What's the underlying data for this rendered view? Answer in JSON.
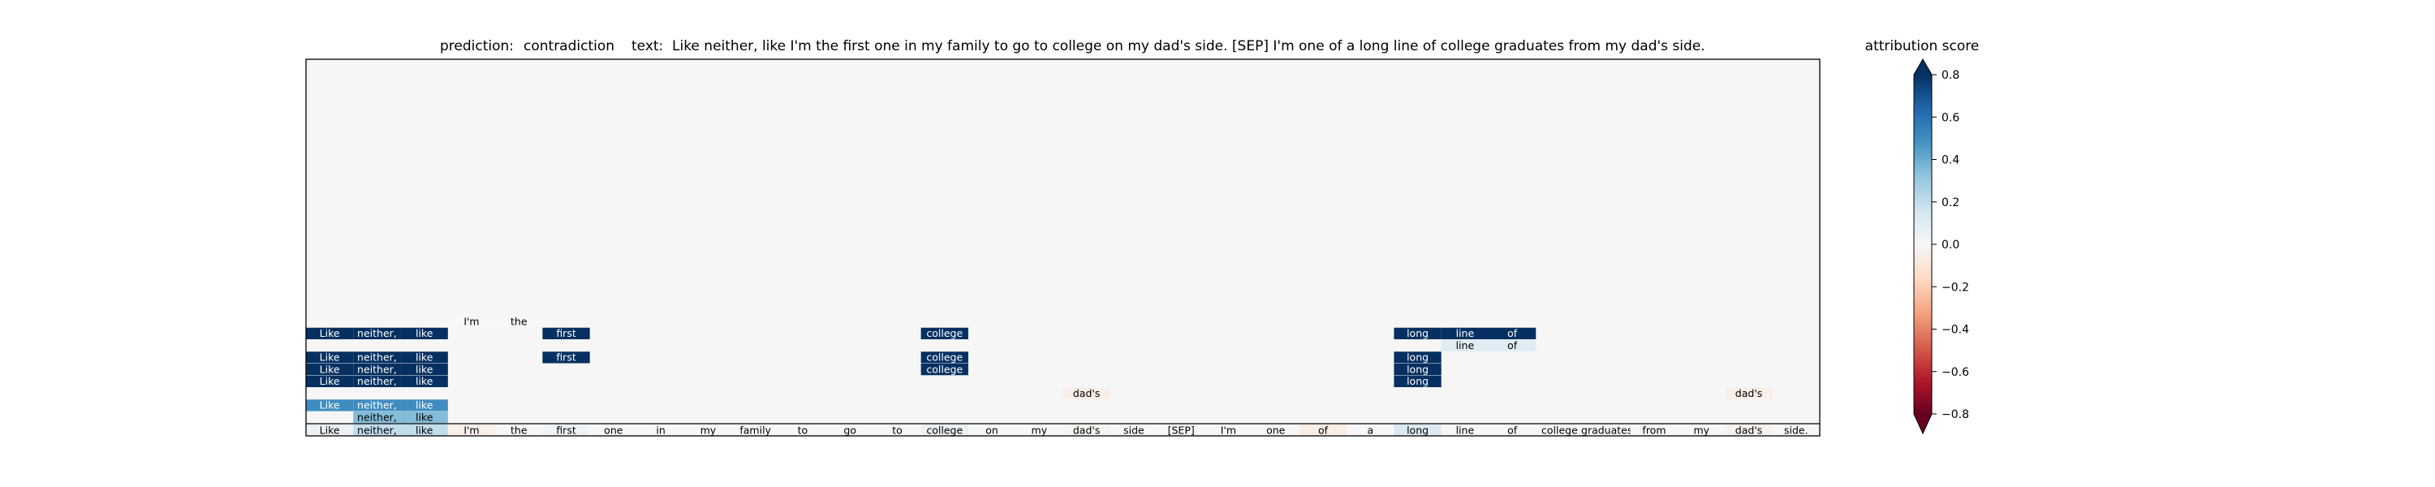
{
  "chart_data": {
    "type": "heatmap",
    "title_prediction_label": "prediction:",
    "title_prediction_value": "contradiction",
    "title_text_label": "text:",
    "title_text_value": "Like neither, like I'm the first one in my family to go to college on my dad's side. [SEP] I'm one of a long line of college graduates from my dad's side.",
    "colorbar": {
      "label": "attribution score",
      "ticks": [
        "0.8",
        "0.6",
        "0.4",
        "0.2",
        "0.0",
        "−0.2",
        "−0.4",
        "−0.6",
        "−0.8"
      ],
      "tick_values": [
        0.8,
        0.6,
        0.4,
        0.2,
        0.0,
        -0.2,
        -0.4,
        -0.6,
        -0.8
      ],
      "range": [
        -0.8,
        0.8
      ],
      "colormap": "RdBu"
    },
    "tokens": [
      "Like",
      "neither,",
      "like",
      "I'm",
      "the",
      "first",
      "one",
      "in",
      "my",
      "family",
      "to",
      "go",
      "to",
      "college",
      "on",
      "my",
      "dad's",
      "side",
      "[SEP]",
      "I'm",
      "one",
      "of",
      "a",
      "long",
      "line",
      "of",
      "college",
      "graduates",
      "from",
      "my",
      "dad's",
      "side."
    ],
    "rows": [
      [
        {
          "i": 3,
          "v": 0.0
        },
        {
          "i": 4,
          "v": 0.0
        }
      ],
      [
        {
          "i": 0,
          "v": 0.8
        },
        {
          "i": 1,
          "v": 0.8
        },
        {
          "i": 2,
          "v": 0.8
        },
        {
          "i": 5,
          "v": 0.8
        },
        {
          "i": 13,
          "v": 0.8
        },
        {
          "i": 23,
          "v": 0.8
        },
        {
          "i": 24,
          "v": 0.8
        },
        {
          "i": 25,
          "v": 0.8
        }
      ],
      [
        {
          "i": 24,
          "v": 0.1
        },
        {
          "i": 25,
          "v": 0.1
        }
      ],
      [
        {
          "i": 0,
          "v": 0.8
        },
        {
          "i": 1,
          "v": 0.8
        },
        {
          "i": 2,
          "v": 0.8
        },
        {
          "i": 5,
          "v": 0.8
        },
        {
          "i": 13,
          "v": 0.8
        },
        {
          "i": 23,
          "v": 0.8
        }
      ],
      [
        {
          "i": 0,
          "v": 0.8
        },
        {
          "i": 1,
          "v": 0.8
        },
        {
          "i": 2,
          "v": 0.8
        },
        {
          "i": 13,
          "v": 0.8
        },
        {
          "i": 23,
          "v": 0.8
        }
      ],
      [
        {
          "i": 0,
          "v": 0.8
        },
        {
          "i": 1,
          "v": 0.8
        },
        {
          "i": 2,
          "v": 0.8
        },
        {
          "i": 23,
          "v": 0.8
        }
      ],
      [
        {
          "i": 16,
          "v": -0.05
        },
        {
          "i": 30,
          "v": -0.05
        }
      ],
      [
        {
          "i": 0,
          "v": 0.5
        },
        {
          "i": 1,
          "v": 0.5
        },
        {
          "i": 2,
          "v": 0.5
        }
      ],
      [
        {
          "i": 1,
          "v": 0.35
        },
        {
          "i": 2,
          "v": 0.35
        }
      ],
      [
        {
          "i": 0,
          "v": 0.05
        },
        {
          "i": 1,
          "v": 0.2
        },
        {
          "i": 2,
          "v": 0.2
        },
        {
          "i": 3,
          "v": -0.04
        },
        {
          "i": 4,
          "v": 0.0
        },
        {
          "i": 5,
          "v": 0.03
        },
        {
          "i": 6,
          "v": 0.0
        },
        {
          "i": 7,
          "v": 0.0
        },
        {
          "i": 8,
          "v": 0.0
        },
        {
          "i": 9,
          "v": 0.0
        },
        {
          "i": 10,
          "v": 0.0
        },
        {
          "i": 11,
          "v": 0.0
        },
        {
          "i": 12,
          "v": 0.0
        },
        {
          "i": 13,
          "v": 0.05
        },
        {
          "i": 14,
          "v": 0.0
        },
        {
          "i": 15,
          "v": 0.0
        },
        {
          "i": 16,
          "v": -0.02
        },
        {
          "i": 17,
          "v": 0.0
        },
        {
          "i": 18,
          "v": 0.0
        },
        {
          "i": 19,
          "v": 0.0
        },
        {
          "i": 20,
          "v": 0.0
        },
        {
          "i": 21,
          "v": -0.06
        },
        {
          "i": 22,
          "v": 0.0
        },
        {
          "i": 23,
          "v": 0.12
        },
        {
          "i": 24,
          "v": 0.0
        },
        {
          "i": 25,
          "v": 0.0
        },
        {
          "i": 26,
          "v": 0.0
        },
        {
          "i": 27,
          "v": 0.0
        },
        {
          "i": 28,
          "v": 0.0
        },
        {
          "i": 29,
          "v": 0.0
        },
        {
          "i": 30,
          "v": -0.03
        },
        {
          "i": 31,
          "v": 0.0
        }
      ]
    ]
  }
}
